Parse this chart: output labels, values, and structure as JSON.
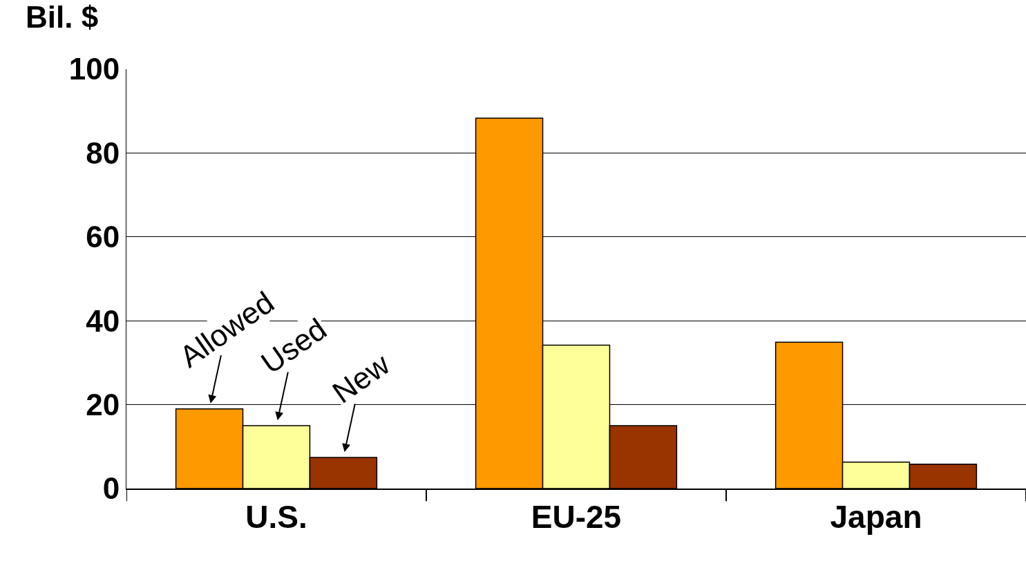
{
  "chart_data": {
    "type": "bar",
    "ylabel": "Bil. $",
    "categories": [
      "U.S.",
      "EU-25",
      "Japan"
    ],
    "series": [
      {
        "name": "Allowed",
        "color": "#ff9900",
        "values": [
          19.0,
          88.3,
          34.9
        ]
      },
      {
        "name": "Used",
        "color": "#ffff99",
        "values": [
          15.0,
          34.2,
          6.3
        ]
      },
      {
        "name": "New",
        "color": "#993300",
        "values": [
          7.4,
          15.0,
          5.8
        ]
      }
    ],
    "ylim": [
      0,
      100
    ],
    "yticks": [
      0,
      20,
      40,
      60,
      80,
      100
    ],
    "grid": "y",
    "legend": false
  }
}
